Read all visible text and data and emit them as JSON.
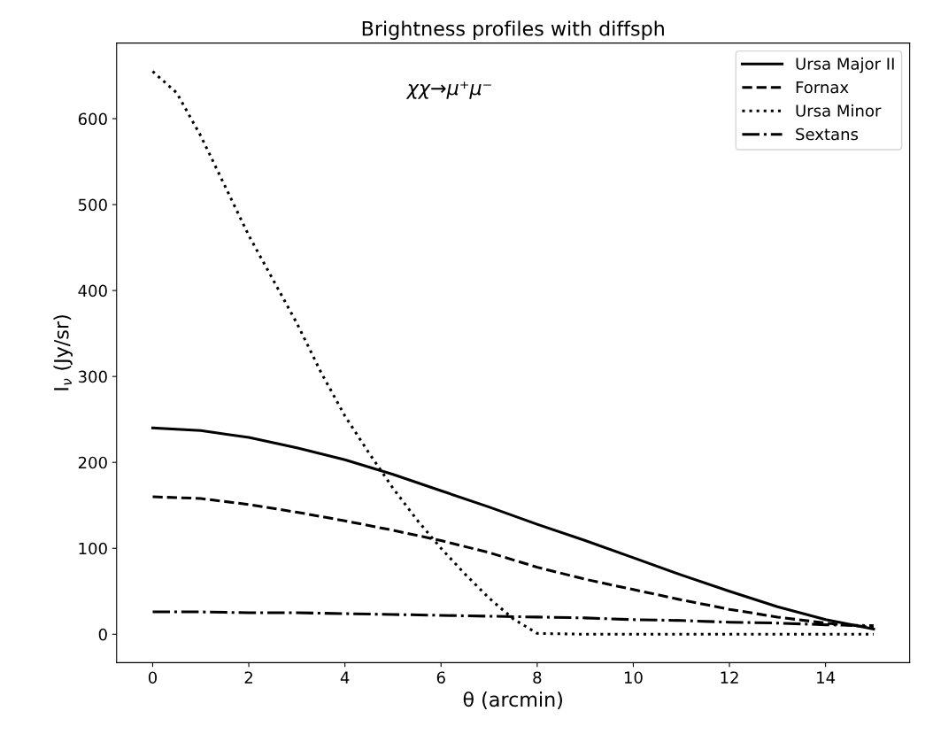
{
  "chart_data": {
    "type": "line",
    "title": "Brightness profiles with diffsph",
    "xlabel": "θ (arcmin)",
    "ylabel": "I$_{ν}$ (Jy/sr)",
    "annotations": [
      "χχ→μ⁺μ⁻"
    ],
    "x": [
      0,
      1,
      2,
      3,
      4,
      5,
      6,
      7,
      8,
      9,
      10,
      11,
      12,
      13,
      14,
      15
    ],
    "series": [
      {
        "name": "Ursa Major II",
        "color": "#000000",
        "line_style": "solid",
        "values": [
          240,
          237,
          229,
          217,
          203,
          186,
          167,
          148,
          128,
          109,
          89,
          69,
          50,
          32,
          17,
          6
        ]
      },
      {
        "name": "Fornax",
        "color": "#000000",
        "line_style": "dashed",
        "values": [
          160,
          158,
          151,
          142,
          132,
          121,
          109,
          95,
          78,
          64,
          52,
          40,
          29,
          20,
          13,
          8
        ]
      },
      {
        "name": "Ursa Minor",
        "color": "#000000",
        "line_style": "dotted",
        "x": [
          0,
          0.5,
          1,
          1.5,
          2,
          2.5,
          3,
          3.5,
          4,
          4.5,
          5,
          5.5,
          6,
          6.5,
          7,
          7.5,
          8,
          9,
          10,
          11,
          12,
          13,
          14,
          15
        ],
        "values": [
          655,
          630,
          580,
          522,
          464,
          413,
          362,
          305,
          254,
          211,
          170,
          133,
          100,
          70,
          42,
          18,
          1,
          0,
          0,
          0,
          0,
          0,
          0,
          0
        ]
      },
      {
        "name": "Sextans",
        "color": "#000000",
        "line_style": "dashdot",
        "values": [
          26,
          26,
          25,
          25,
          24,
          23,
          22,
          21,
          20,
          19,
          17,
          16,
          14,
          13,
          11,
          10
        ]
      }
    ],
    "xlim": [
      -0.75,
      15.75
    ],
    "ylim": [
      -33,
      688
    ],
    "xticks": [
      0,
      2,
      4,
      6,
      8,
      10,
      12,
      14
    ],
    "yticks": [
      0,
      100,
      200,
      300,
      400,
      500,
      600
    ],
    "legend": "top right",
    "grid": false
  }
}
